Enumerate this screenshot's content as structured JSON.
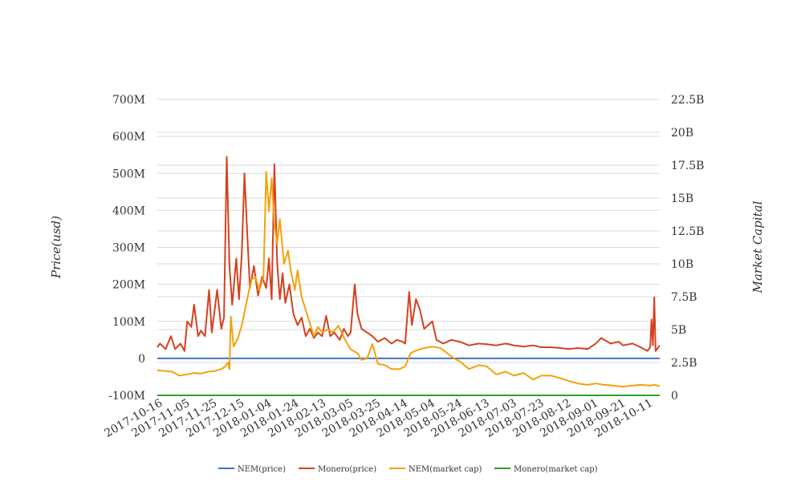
{
  "chart_data": {
    "type": "line",
    "title": "",
    "ylabel": "Price(usd)",
    "y2label": "Market Capital",
    "ylim": [
      -100000000,
      700000000
    ],
    "y2lim": [
      0,
      22500000000
    ],
    "y_ticks": [
      "700M",
      "600M",
      "500M",
      "400M",
      "300M",
      "200M",
      "100M",
      "0",
      "-100M"
    ],
    "y2_ticks": [
      "22.5B",
      "20B",
      "17.5B",
      "15B",
      "12.5B",
      "10B",
      "7.5B",
      "5B",
      "2.5B",
      "0"
    ],
    "x_ticks": [
      "2017-10-16",
      "2017-11-05",
      "2017-11-25",
      "2017-12-15",
      "2018-01-04",
      "2018-01-24",
      "2018-02-13",
      "2018-03-05",
      "2018-03-25",
      "2018-04-14",
      "2018-05-04",
      "2018-05-24",
      "2018-06-13",
      "2018-07-03",
      "2018-07-23",
      "2018-08-12",
      "2018-09-01",
      "2018-09-21",
      "2018-10-11"
    ],
    "x_start": "2017-10-14",
    "x_end": "2018-10-18",
    "grid": true,
    "legend_position": "bottom",
    "series": [
      {
        "name": "NEM(price)",
        "color": "#4472c4",
        "axis": "left",
        "points": [
          [
            "2017-10-14",
            0
          ],
          [
            "2018-10-18",
            0
          ]
        ]
      },
      {
        "name": "Monero(price)",
        "color": "#d6401f",
        "axis": "left",
        "points": [
          [
            "2017-10-14",
            30000000
          ],
          [
            "2017-10-16",
            40000000
          ],
          [
            "2017-10-20",
            25000000
          ],
          [
            "2017-10-24",
            60000000
          ],
          [
            "2017-10-27",
            25000000
          ],
          [
            "2017-10-31",
            40000000
          ],
          [
            "2017-11-03",
            20000000
          ],
          [
            "2017-11-05",
            100000000
          ],
          [
            "2017-11-08",
            85000000
          ],
          [
            "2017-11-10",
            145000000
          ],
          [
            "2017-11-13",
            60000000
          ],
          [
            "2017-11-15",
            75000000
          ],
          [
            "2017-11-18",
            60000000
          ],
          [
            "2017-11-21",
            185000000
          ],
          [
            "2017-11-23",
            70000000
          ],
          [
            "2017-11-27",
            185000000
          ],
          [
            "2017-11-30",
            80000000
          ],
          [
            "2017-12-02",
            110000000
          ],
          [
            "2017-12-04",
            545000000
          ],
          [
            "2017-12-06",
            250000000
          ],
          [
            "2017-12-08",
            145000000
          ],
          [
            "2017-12-11",
            270000000
          ],
          [
            "2017-12-13",
            160000000
          ],
          [
            "2017-12-15",
            280000000
          ],
          [
            "2017-12-17",
            500000000
          ],
          [
            "2017-12-19",
            340000000
          ],
          [
            "2017-12-21",
            190000000
          ],
          [
            "2017-12-24",
            250000000
          ],
          [
            "2017-12-27",
            170000000
          ],
          [
            "2017-12-30",
            220000000
          ],
          [
            "2018-01-02",
            190000000
          ],
          [
            "2018-01-04",
            270000000
          ],
          [
            "2018-01-06",
            160000000
          ],
          [
            "2018-01-08",
            525000000
          ],
          [
            "2018-01-10",
            260000000
          ],
          [
            "2018-01-12",
            160000000
          ],
          [
            "2018-01-14",
            230000000
          ],
          [
            "2018-01-16",
            150000000
          ],
          [
            "2018-01-19",
            200000000
          ],
          [
            "2018-01-22",
            120000000
          ],
          [
            "2018-01-25",
            90000000
          ],
          [
            "2018-01-28",
            110000000
          ],
          [
            "2018-01-31",
            60000000
          ],
          [
            "2018-02-03",
            80000000
          ],
          [
            "2018-02-06",
            55000000
          ],
          [
            "2018-02-09",
            70000000
          ],
          [
            "2018-02-12",
            60000000
          ],
          [
            "2018-02-15",
            115000000
          ],
          [
            "2018-02-18",
            60000000
          ],
          [
            "2018-02-21",
            70000000
          ],
          [
            "2018-02-25",
            50000000
          ],
          [
            "2018-02-28",
            80000000
          ],
          [
            "2018-03-03",
            60000000
          ],
          [
            "2018-03-05",
            70000000
          ],
          [
            "2018-03-08",
            200000000
          ],
          [
            "2018-03-10",
            120000000
          ],
          [
            "2018-03-13",
            80000000
          ],
          [
            "2018-03-17",
            70000000
          ],
          [
            "2018-03-21",
            60000000
          ],
          [
            "2018-03-25",
            45000000
          ],
          [
            "2018-03-30",
            55000000
          ],
          [
            "2018-04-04",
            40000000
          ],
          [
            "2018-04-08",
            50000000
          ],
          [
            "2018-04-12",
            45000000
          ],
          [
            "2018-04-14",
            40000000
          ],
          [
            "2018-04-17",
            180000000
          ],
          [
            "2018-04-19",
            90000000
          ],
          [
            "2018-04-22",
            160000000
          ],
          [
            "2018-04-25",
            130000000
          ],
          [
            "2018-04-28",
            80000000
          ],
          [
            "2018-05-01",
            90000000
          ],
          [
            "2018-05-04",
            100000000
          ],
          [
            "2018-05-07",
            50000000
          ],
          [
            "2018-05-12",
            40000000
          ],
          [
            "2018-05-18",
            50000000
          ],
          [
            "2018-05-24",
            45000000
          ],
          [
            "2018-05-31",
            35000000
          ],
          [
            "2018-06-07",
            40000000
          ],
          [
            "2018-06-13",
            38000000
          ],
          [
            "2018-06-20",
            35000000
          ],
          [
            "2018-06-27",
            40000000
          ],
          [
            "2018-07-03",
            35000000
          ],
          [
            "2018-07-10",
            32000000
          ],
          [
            "2018-07-17",
            35000000
          ],
          [
            "2018-07-23",
            30000000
          ],
          [
            "2018-07-30",
            30000000
          ],
          [
            "2018-08-06",
            28000000
          ],
          [
            "2018-08-12",
            25000000
          ],
          [
            "2018-08-19",
            28000000
          ],
          [
            "2018-08-26",
            25000000
          ],
          [
            "2018-09-01",
            40000000
          ],
          [
            "2018-09-05",
            55000000
          ],
          [
            "2018-09-12",
            40000000
          ],
          [
            "2018-09-18",
            45000000
          ],
          [
            "2018-09-21",
            35000000
          ],
          [
            "2018-09-28",
            40000000
          ],
          [
            "2018-10-04",
            30000000
          ],
          [
            "2018-10-09",
            20000000
          ],
          [
            "2018-10-11",
            30000000
          ],
          [
            "2018-10-12",
            105000000
          ],
          [
            "2018-10-13",
            35000000
          ],
          [
            "2018-10-14",
            165000000
          ],
          [
            "2018-10-15",
            20000000
          ],
          [
            "2018-10-16",
            25000000
          ],
          [
            "2018-10-18",
            35000000
          ]
        ]
      },
      {
        "name": "NEM(market cap)",
        "color": "#f2a20a",
        "axis": "right",
        "points": [
          [
            "2017-10-14",
            1900000000
          ],
          [
            "2017-10-20",
            1850000000
          ],
          [
            "2017-10-25",
            1800000000
          ],
          [
            "2017-10-30",
            1500000000
          ],
          [
            "2017-11-05",
            1600000000
          ],
          [
            "2017-11-10",
            1700000000
          ],
          [
            "2017-11-15",
            1650000000
          ],
          [
            "2017-11-20",
            1800000000
          ],
          [
            "2017-11-25",
            1850000000
          ],
          [
            "2017-11-30",
            2000000000
          ],
          [
            "2017-12-03",
            2200000000
          ],
          [
            "2017-12-05",
            2500000000
          ],
          [
            "2017-12-06",
            2000000000
          ],
          [
            "2017-12-07",
            6000000000
          ],
          [
            "2017-12-09",
            3700000000
          ],
          [
            "2017-12-12",
            4300000000
          ],
          [
            "2017-12-15",
            5300000000
          ],
          [
            "2017-12-18",
            6800000000
          ],
          [
            "2017-12-22",
            8800000000
          ],
          [
            "2017-12-25",
            9000000000
          ],
          [
            "2017-12-28",
            8000000000
          ],
          [
            "2017-12-31",
            9000000000
          ],
          [
            "2018-01-02",
            17000000000
          ],
          [
            "2018-01-04",
            14000000000
          ],
          [
            "2018-01-06",
            16500000000
          ],
          [
            "2018-01-08",
            13000000000
          ],
          [
            "2018-01-10",
            11500000000
          ],
          [
            "2018-01-12",
            13400000000
          ],
          [
            "2018-01-15",
            10000000000
          ],
          [
            "2018-01-18",
            11000000000
          ],
          [
            "2018-01-20",
            9500000000
          ],
          [
            "2018-01-23",
            8000000000
          ],
          [
            "2018-01-25",
            9500000000
          ],
          [
            "2018-01-28",
            7500000000
          ],
          [
            "2018-01-31",
            6500000000
          ],
          [
            "2018-02-03",
            5500000000
          ],
          [
            "2018-02-06",
            4500000000
          ],
          [
            "2018-02-09",
            5200000000
          ],
          [
            "2018-02-12",
            4800000000
          ],
          [
            "2018-02-16",
            5000000000
          ],
          [
            "2018-02-20",
            4800000000
          ],
          [
            "2018-02-24",
            5300000000
          ],
          [
            "2018-03-01",
            4200000000
          ],
          [
            "2018-03-05",
            3500000000
          ],
          [
            "2018-03-10",
            3200000000
          ],
          [
            "2018-03-13",
            2700000000
          ],
          [
            "2018-03-17",
            2800000000
          ],
          [
            "2018-03-21",
            3900000000
          ],
          [
            "2018-03-25",
            2400000000
          ],
          [
            "2018-03-30",
            2300000000
          ],
          [
            "2018-04-04",
            2000000000
          ],
          [
            "2018-04-10",
            2000000000
          ],
          [
            "2018-04-14",
            2200000000
          ],
          [
            "2018-04-18",
            3200000000
          ],
          [
            "2018-04-22",
            3400000000
          ],
          [
            "2018-04-28",
            3600000000
          ],
          [
            "2018-05-04",
            3700000000
          ],
          [
            "2018-05-10",
            3600000000
          ],
          [
            "2018-05-15",
            3200000000
          ],
          [
            "2018-05-20",
            2800000000
          ],
          [
            "2018-05-24",
            2600000000
          ],
          [
            "2018-05-31",
            2000000000
          ],
          [
            "2018-06-07",
            2300000000
          ],
          [
            "2018-06-13",
            2200000000
          ],
          [
            "2018-06-20",
            1600000000
          ],
          [
            "2018-06-27",
            1800000000
          ],
          [
            "2018-07-03",
            1500000000
          ],
          [
            "2018-07-10",
            1700000000
          ],
          [
            "2018-07-17",
            1200000000
          ],
          [
            "2018-07-23",
            1500000000
          ],
          [
            "2018-07-30",
            1500000000
          ],
          [
            "2018-08-06",
            1300000000
          ],
          [
            "2018-08-12",
            1100000000
          ],
          [
            "2018-08-19",
            900000000
          ],
          [
            "2018-08-26",
            800000000
          ],
          [
            "2018-09-01",
            900000000
          ],
          [
            "2018-09-07",
            800000000
          ],
          [
            "2018-09-14",
            750000000
          ],
          [
            "2018-09-21",
            650000000
          ],
          [
            "2018-09-28",
            750000000
          ],
          [
            "2018-10-04",
            800000000
          ],
          [
            "2018-10-11",
            750000000
          ],
          [
            "2018-10-14",
            800000000
          ],
          [
            "2018-10-18",
            700000000
          ]
        ]
      },
      {
        "name": "Monero(market cap)",
        "color": "#2ca02c",
        "axis": "right",
        "points": [
          [
            "2017-10-14",
            0
          ],
          [
            "2018-10-18",
            0
          ]
        ]
      }
    ]
  }
}
